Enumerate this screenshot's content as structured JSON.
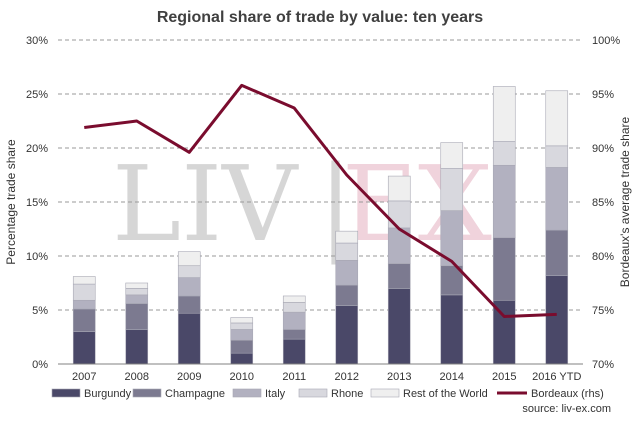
{
  "chart_data": {
    "type": "bar",
    "title": "Regional share of trade by value: ten years",
    "ylabel": "Percentage trade share",
    "y2label": "Bordeaux's average trade share",
    "ylim": [
      0,
      30
    ],
    "y2lim": [
      70,
      100
    ],
    "yticks": [
      "0%",
      "5%",
      "10%",
      "15%",
      "20%",
      "25%",
      "30%"
    ],
    "y2ticks": [
      "70%",
      "75%",
      "80%",
      "85%",
      "90%",
      "95%",
      "100%"
    ],
    "stacked": true,
    "grid": true,
    "legend_position": "bottom",
    "categories": [
      "2007",
      "2008",
      "2009",
      "2010",
      "2011",
      "2012",
      "2013",
      "2014",
      "2015",
      "2016 YTD"
    ],
    "series": [
      {
        "name": "Burgundy",
        "type": "bar",
        "color": "#4a4868",
        "values": [
          3.0,
          3.2,
          4.7,
          1.0,
          2.3,
          5.4,
          7.0,
          6.4,
          5.9,
          8.2
        ]
      },
      {
        "name": "Champagne",
        "type": "bar",
        "color": "#7c7a90",
        "values": [
          2.1,
          2.4,
          1.6,
          1.2,
          0.9,
          1.9,
          2.3,
          2.7,
          5.8,
          4.2
        ]
      },
      {
        "name": "Italy",
        "type": "bar",
        "color": "#b2b1c0",
        "values": [
          0.8,
          0.8,
          1.7,
          1.0,
          1.6,
          2.3,
          3.3,
          5.1,
          6.7,
          5.8
        ]
      },
      {
        "name": "Rhone",
        "type": "bar",
        "color": "#d8d8de",
        "values": [
          1.5,
          0.6,
          1.1,
          0.6,
          0.9,
          1.6,
          2.5,
          3.9,
          2.2,
          2.0
        ]
      },
      {
        "name": "Rest of the World",
        "type": "bar",
        "color": "#efefef",
        "values": [
          0.7,
          0.5,
          1.3,
          0.5,
          0.6,
          1.1,
          2.3,
          2.4,
          5.1,
          5.1
        ]
      },
      {
        "name": "Bordeaux (rhs)",
        "type": "line",
        "axis": "right",
        "color": "#7a0c2e",
        "values": [
          91.9,
          92.5,
          89.6,
          95.8,
          93.7,
          87.5,
          82.5,
          79.5,
          74.4,
          74.6
        ]
      }
    ]
  },
  "watermark": {
    "left": "LIV",
    "separator": "|",
    "right": "EX"
  },
  "source": "source: liv-ex.com",
  "colors": {
    "grid": "#9a9a9a",
    "axis": "#808080",
    "watermark_grey": "#d6d6d6",
    "watermark_red": "#f0d3dc"
  }
}
